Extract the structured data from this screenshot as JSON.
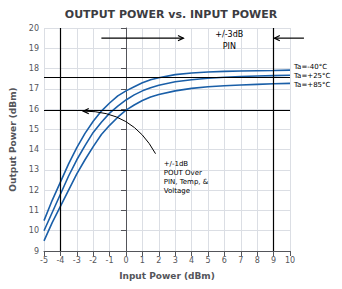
{
  "chart_data": {
    "type": "line",
    "title": "OUTPUT POWER vs. INPUT POWER",
    "xlabel": "Input Power (dBm)",
    "ylabel": "Output Power (dBm)",
    "xlim": [
      -5,
      10
    ],
    "ylim": [
      9,
      20
    ],
    "xticks": [
      -5,
      -4,
      -3,
      -2,
      -1,
      0,
      1,
      2,
      3,
      4,
      5,
      6,
      7,
      8,
      9,
      10
    ],
    "yticks": [
      9,
      10,
      11,
      12,
      13,
      14,
      15,
      16,
      17,
      18,
      19,
      20
    ],
    "grid": true,
    "x": [
      -5,
      -4.5,
      -4,
      -3.5,
      -3,
      -2.5,
      -2,
      -1.5,
      -1,
      -0.5,
      0,
      0.5,
      1,
      1.5,
      2,
      3,
      4,
      5,
      6,
      7,
      8,
      9,
      10
    ],
    "series": [
      {
        "name": "Ta=-40°C",
        "color": "#1a5fa8",
        "values": [
          10.5,
          11.5,
          12.4,
          13.3,
          14.1,
          14.8,
          15.4,
          15.9,
          16.3,
          16.65,
          16.9,
          17.1,
          17.3,
          17.45,
          17.55,
          17.7,
          17.78,
          17.83,
          17.86,
          17.88,
          17.89,
          17.9,
          17.92
        ]
      },
      {
        "name": "Ta=+25°C",
        "color": "#1a5fa8",
        "values": [
          10.0,
          10.9,
          11.8,
          12.7,
          13.5,
          14.2,
          14.85,
          15.35,
          15.8,
          16.15,
          16.45,
          16.7,
          16.9,
          17.05,
          17.18,
          17.35,
          17.45,
          17.52,
          17.57,
          17.61,
          17.63,
          17.65,
          17.67
        ]
      },
      {
        "name": "Ta=+85°C",
        "color": "#1a5fa8",
        "values": [
          9.5,
          10.4,
          11.2,
          12.0,
          12.8,
          13.5,
          14.15,
          14.75,
          15.2,
          15.6,
          15.95,
          16.2,
          16.42,
          16.6,
          16.72,
          16.9,
          17.02,
          17.1,
          17.15,
          17.19,
          17.22,
          17.25,
          17.27
        ]
      }
    ],
    "reference_lines": {
      "y": [
        17.57,
        15.95
      ],
      "x": [
        -4,
        9
      ],
      "color": "#000000"
    },
    "arrows": [
      {
        "from": [
          -1.5,
          19.5
        ],
        "to": [
          3.5,
          19.5
        ]
      },
      {
        "from": [
          10.85,
          19.5
        ],
        "to": [
          9.05,
          19.5
        ]
      },
      {
        "from": [
          1.8,
          13.8
        ],
        "to": [
          -2.6,
          15.9
        ],
        "curved": true
      }
    ],
    "annotations": [
      {
        "text": "+/-3dB",
        "x": 6.3,
        "y": 19.7
      },
      {
        "text": "PIN",
        "x": 6.3,
        "y": 19.1
      },
      {
        "text": "+/-1dB\nPOUT Over\nPIN, Temp, &\nVoltage",
        "x": 2.3,
        "y": 13.5
      }
    ]
  }
}
